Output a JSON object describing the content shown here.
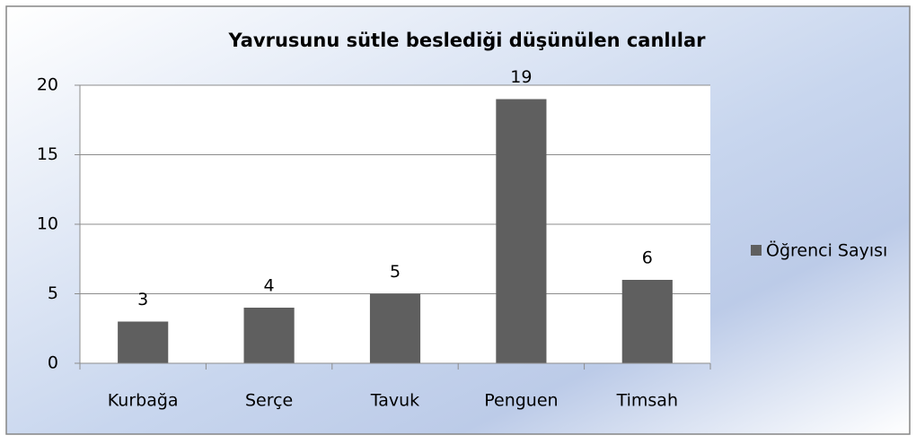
{
  "chart_data": {
    "type": "bar",
    "title": "Yavrusunu sütle beslediği düşünülen canlılar",
    "categories": [
      "Kurbağa",
      "Serçe",
      "Tavuk",
      "Penguen",
      "Timsah"
    ],
    "series": [
      {
        "name": "Öğrenci Sayısı",
        "color": "#5f5f5f",
        "values": [
          3,
          4,
          5,
          19,
          6
        ]
      }
    ],
    "ylim": [
      0,
      20
    ],
    "yticks": [
      0,
      5,
      10,
      15,
      20
    ],
    "grid": true,
    "legend": "right"
  }
}
